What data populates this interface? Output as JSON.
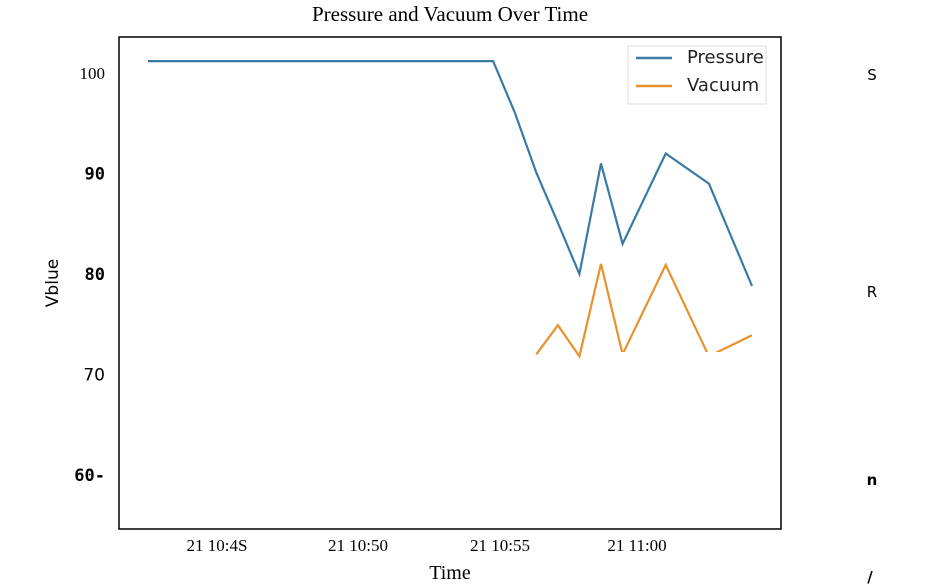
{
  "chart_data": {
    "type": "line",
    "title": "Pressure and Vacuum Over Time",
    "xlabel": "Time",
    "ylabel": "Vblue",
    "x_ticks": [
      "21 10:4S",
      "21 10:50",
      "21 10:55",
      "21 11:00"
    ],
    "y_ticks": [
      "100",
      "90",
      "80",
      "70",
      "60-"
    ],
    "ylim": [
      54.6,
      103.6
    ],
    "grid": false,
    "legend_position": "top-right",
    "x": [
      0.0,
      1.0,
      2.0,
      3.0,
      4.0,
      5.0,
      6.0,
      7.0,
      8.0,
      8.5,
      9.0,
      9.5,
      10.0,
      10.5,
      11.0,
      12.0,
      13.0,
      14.0
    ],
    "series": [
      {
        "name": "Pressure",
        "color": "#3a7aa5",
        "values": [
          101.2,
          101.2,
          101.2,
          101.2,
          101.2,
          101.2,
          101.2,
          101.2,
          101.2,
          96.1,
          90.1,
          85.1,
          80.0,
          91.0,
          83.0,
          92.0,
          89.0,
          78.8
        ]
      },
      {
        "name": "Vacuum",
        "color": "#e8922e",
        "values": [
          null,
          null,
          null,
          null,
          null,
          null,
          null,
          null,
          null,
          null,
          72.0,
          74.9,
          71.8,
          81.0,
          72.0,
          80.9,
          71.8,
          73.9
        ]
      }
    ]
  },
  "side_markers": [
    "S",
    "R",
    "n",
    "/"
  ]
}
